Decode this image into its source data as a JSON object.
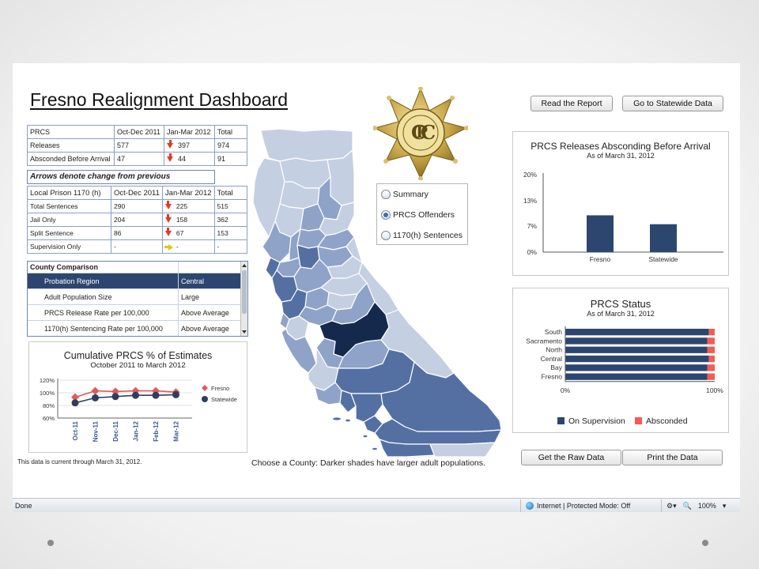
{
  "page": {
    "title": "Fresno Realignment Dashboard",
    "footnote": "This data is current through March 31, 2012.",
    "map_note": "Choose a County: Darker shades have larger adult populations."
  },
  "buttons": {
    "read_report": "Read the Report",
    "statewide": "Go to Statewide Data",
    "raw_data": "Get the Raw Data",
    "print": "Print the Data"
  },
  "prcs_table": {
    "headers": [
      "PRCS",
      "Oct-Dec 2011",
      "Jan-Mar 2012",
      "Total"
    ],
    "rows": [
      {
        "label": "Releases",
        "q1": "577",
        "q2": "397",
        "total": "974",
        "arrow": "down"
      },
      {
        "label": "Absconded Before Arrival",
        "q1": "47",
        "q2": "44",
        "total": "91",
        "arrow": "down"
      }
    ]
  },
  "arrows_note": "Arrows denote change from previous",
  "prison_table": {
    "headers": [
      "Local Prison 1170 (h)",
      "Oct-Dec 2011",
      "Jan-Mar 2012",
      "Total"
    ],
    "rows": [
      {
        "label": "Total Sentences",
        "q1": "290",
        "q2": "225",
        "total": "515",
        "arrow": "down"
      },
      {
        "label": "Jail Only",
        "q1": "204",
        "q2": "158",
        "total": "362",
        "arrow": "down"
      },
      {
        "label": "Split Sentence",
        "q1": "86",
        "q2": "67",
        "total": "153",
        "arrow": "down"
      },
      {
        "label": "Supervision Only",
        "q1": "-",
        "q2": "-",
        "total": "-",
        "arrow": "right"
      }
    ]
  },
  "county_comparison": {
    "header": "County Comparison",
    "rows": [
      {
        "label": "Probation Region",
        "value": "Central",
        "selected": true
      },
      {
        "label": "Adult Population Size",
        "value": "Large",
        "selected": false
      },
      {
        "label": "PRCS Release Rate per 100,000",
        "value": "Above Average",
        "selected": false
      },
      {
        "label": "1170(h) Sentencing Rate per 100,000",
        "value": "Above Average",
        "selected": false
      }
    ]
  },
  "view_options": {
    "items": [
      "Summary",
      "PRCS Offenders",
      "1170(h) Sentences"
    ],
    "selected": "PRCS Offenders"
  },
  "statusbar": {
    "left": "Done",
    "zone": "Internet | Protected Mode: Off",
    "zoom": "100%"
  },
  "colors": {
    "navy": "#2d4670",
    "fresno_line": "#e05a5a",
    "statewide_line": "#2f3e5c",
    "absconded": "#f25c54",
    "map_light": "#c5cfe2",
    "map_mid": "#8fa3c8",
    "map_dark": "#5470a3",
    "map_selected": "#15294d"
  },
  "chart_data": [
    {
      "type": "bar",
      "title": "PRCS Releases Absconding Before Arrival",
      "subtitle": "As of March 31, 2012",
      "categories": [
        "Fresno",
        "Statewide"
      ],
      "values": [
        9.5,
        7.2
      ],
      "y_ticks": [
        "20%",
        "13%",
        "7%",
        "0%"
      ],
      "ylim": [
        0,
        20
      ],
      "unit": "%",
      "color": "#2d4670"
    },
    {
      "type": "bar",
      "orientation": "horizontal-stacked",
      "title": "PRCS Status",
      "subtitle": "As of March 31, 2012",
      "categories": [
        "South",
        "Sacramento",
        "North",
        "Central",
        "Bay",
        "Fresno"
      ],
      "series": [
        {
          "name": "On Supervision",
          "values": [
            96,
            95,
            95,
            96,
            95,
            95
          ],
          "color": "#2d4670"
        },
        {
          "name": "Absconded",
          "values": [
            4,
            5,
            5,
            4,
            5,
            5
          ],
          "color": "#f25c54"
        }
      ],
      "x_ticks": [
        "0%",
        "100%"
      ],
      "xlim": [
        0,
        100
      ],
      "legend": "bottom"
    },
    {
      "type": "line",
      "title": "Cumulative PRCS % of Estimates",
      "subtitle": "October 2011 to March 2012",
      "x": [
        "Oct-11",
        "Nov-11",
        "Dec-11",
        "Jan-12",
        "Feb-12",
        "Mar-12"
      ],
      "y_ticks": [
        "120%",
        "100%",
        "80%",
        "60%"
      ],
      "ylim": [
        60,
        120
      ],
      "series": [
        {
          "name": "Fresno",
          "values": [
            93,
            103,
            102,
            103,
            103,
            101
          ],
          "color": "#e05a5a",
          "marker": "diamond"
        },
        {
          "name": "Statewide",
          "values": [
            84,
            92,
            94,
            96,
            96,
            97
          ],
          "color": "#2f3e5c",
          "marker": "circle"
        }
      ],
      "legend": "right"
    }
  ]
}
